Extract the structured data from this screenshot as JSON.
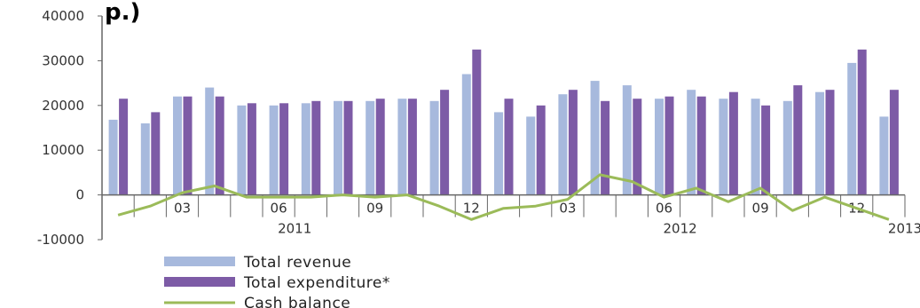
{
  "top_fragment": "p.)",
  "chart_data": {
    "type": "bar",
    "y_ticks": [
      "40000",
      "30000",
      "20000",
      "10000",
      "0",
      "-10000"
    ],
    "ylim": [
      -10000,
      40000
    ],
    "grid": false,
    "month_labels": [
      {
        "index": 2,
        "text": "03"
      },
      {
        "index": 5,
        "text": "06"
      },
      {
        "index": 8,
        "text": "09"
      },
      {
        "index": 11,
        "text": "12"
      },
      {
        "index": 14,
        "text": "03"
      },
      {
        "index": 17,
        "text": "06"
      },
      {
        "index": 20,
        "text": "09"
      },
      {
        "index": 23,
        "text": "12"
      }
    ],
    "year_labels": [
      {
        "index": 5.5,
        "text": "2011"
      },
      {
        "index": 17.5,
        "text": "2012"
      },
      {
        "index": 24.5,
        "text": "2013"
      }
    ],
    "series": [
      {
        "name": "Total revenue",
        "type": "bar",
        "color": "#a7b9dd",
        "values": [
          16800,
          16000,
          22000,
          24000,
          20000,
          20000,
          20500,
          21000,
          21000,
          21500,
          21000,
          27000,
          18500,
          17500,
          22500,
          25500,
          24500,
          21500,
          23500,
          21500,
          21500,
          21000,
          23000,
          29500,
          17500
        ]
      },
      {
        "name": "Total expenditure*",
        "type": "bar",
        "color": "#7d5ba6",
        "values": [
          21500,
          18500,
          22000,
          22000,
          20500,
          20500,
          21000,
          21000,
          21500,
          21500,
          23500,
          32500,
          21500,
          20000,
          23500,
          21000,
          21500,
          22000,
          22000,
          23000,
          20000,
          24500,
          23500,
          32500,
          23500
        ]
      },
      {
        "name": "Cash balance",
        "type": "line",
        "color": "#9bbb59",
        "values": [
          -4500,
          -2500,
          500,
          2000,
          -500,
          -500,
          -500,
          0,
          -500,
          0,
          -2500,
          -5500,
          -3000,
          -2500,
          -1000,
          4500,
          3000,
          -500,
          1500,
          -1500,
          1500,
          -3500,
          -500,
          -3000,
          -5500
        ]
      }
    ],
    "legend_position": "bottom-left"
  }
}
